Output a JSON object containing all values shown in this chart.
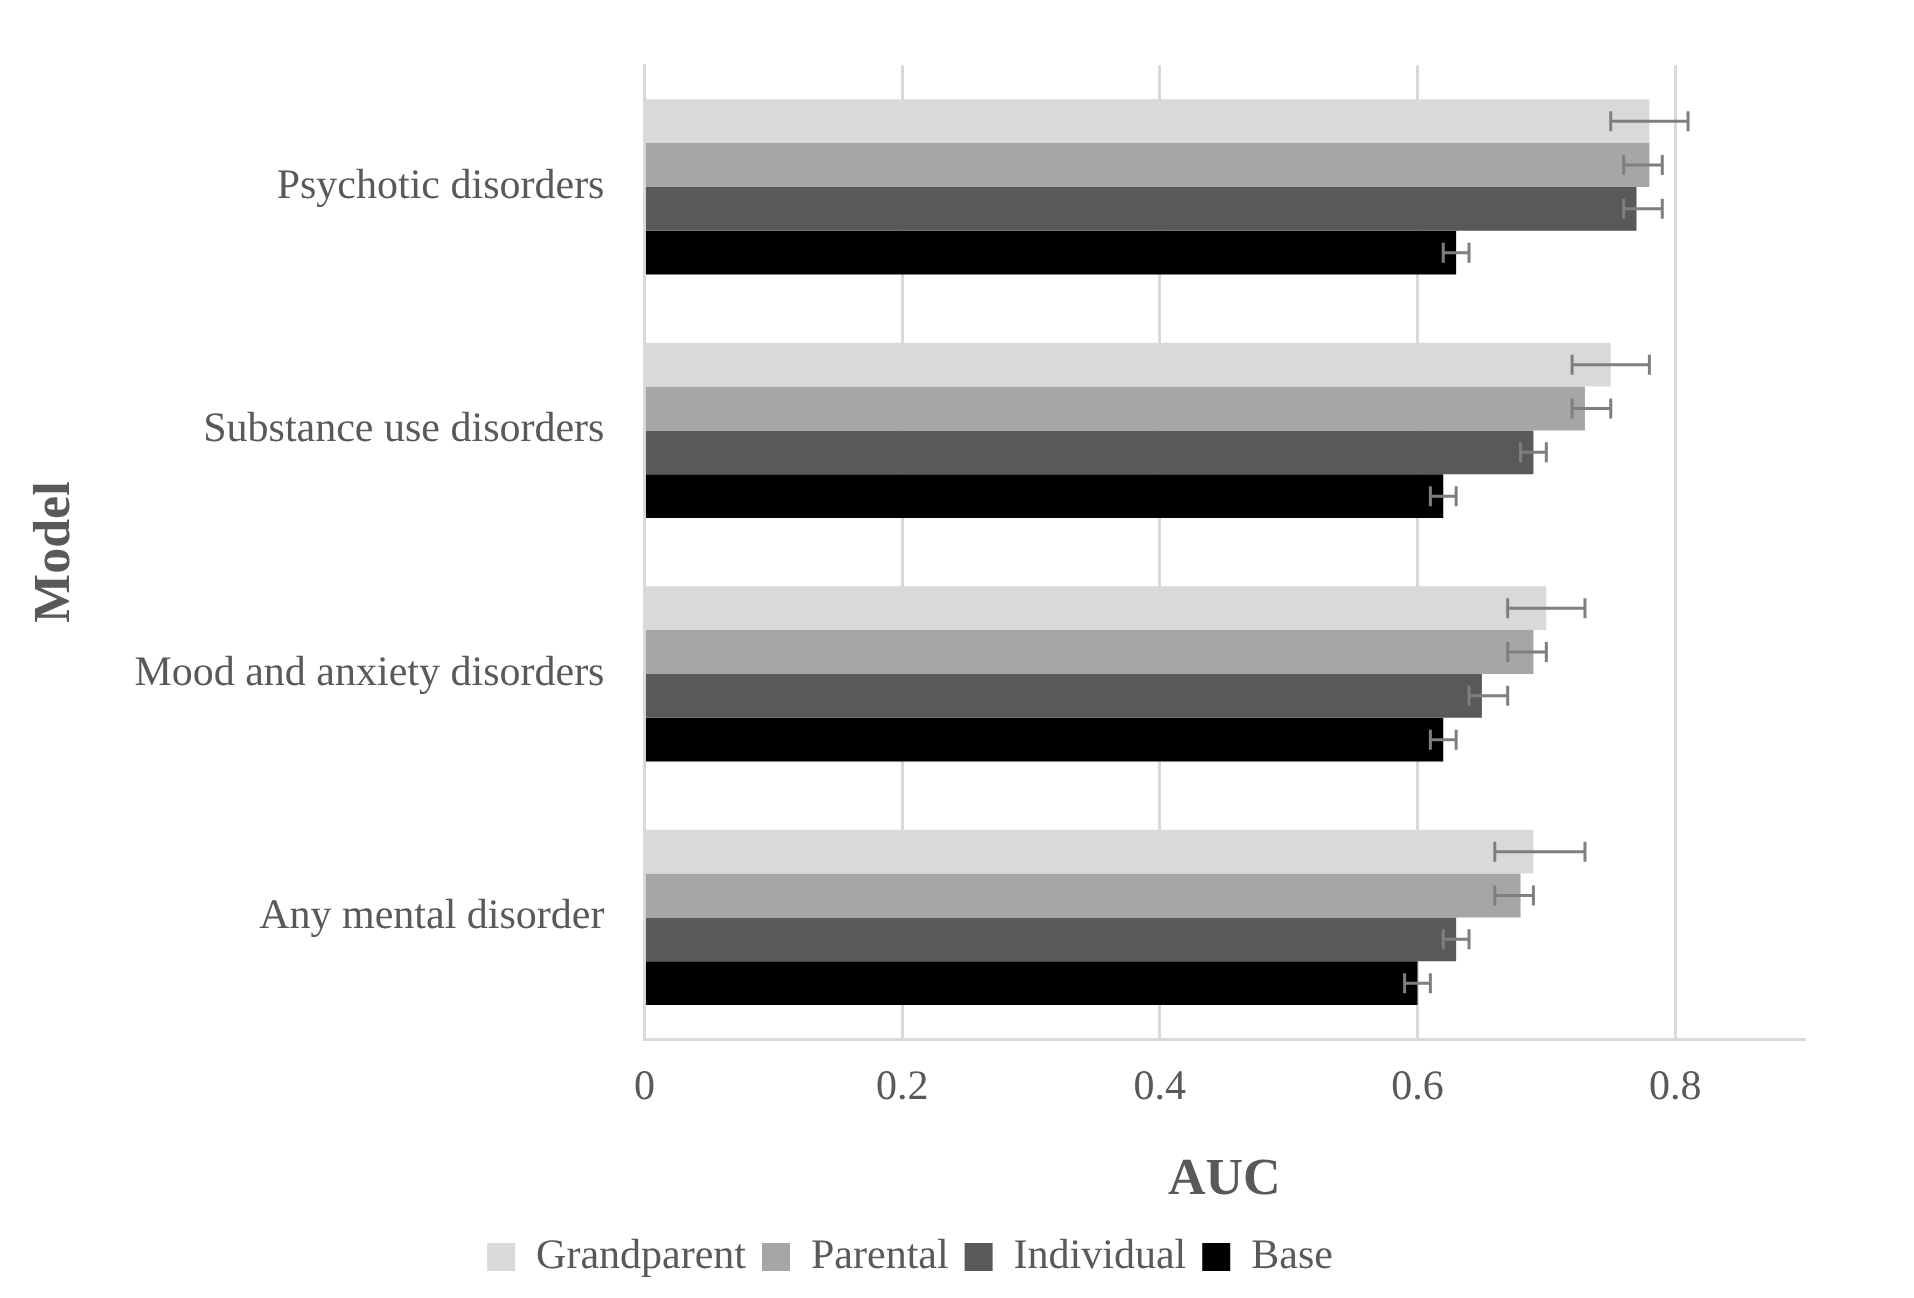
{
  "chart_data": {
    "type": "bar",
    "orientation": "horizontal",
    "xlabel": "AUC",
    "ylabel": "Model",
    "categories": [
      "Psychotic disorders",
      "Substance use disorders",
      "Mood and anxiety disorders",
      "Any mental disorder"
    ],
    "series": [
      {
        "name": "Grandparent",
        "color": "#d9d9d9",
        "values": [
          0.78,
          0.75,
          0.7,
          0.69
        ],
        "errors": [
          [
            0.75,
            0.81
          ],
          [
            0.72,
            0.78
          ],
          [
            0.67,
            0.73
          ],
          [
            0.66,
            0.73
          ]
        ]
      },
      {
        "name": "Parental",
        "color": "#a6a6a6",
        "values": [
          0.78,
          0.73,
          0.69,
          0.68
        ],
        "errors": [
          [
            0.76,
            0.79
          ],
          [
            0.72,
            0.75
          ],
          [
            0.67,
            0.7
          ],
          [
            0.66,
            0.69
          ]
        ]
      },
      {
        "name": "Individual",
        "color": "#595959",
        "values": [
          0.77,
          0.69,
          0.65,
          0.63
        ],
        "errors": [
          [
            0.76,
            0.79
          ],
          [
            0.68,
            0.7
          ],
          [
            0.64,
            0.67
          ],
          [
            0.62,
            0.64
          ]
        ]
      },
      {
        "name": "Base",
        "color": "#000000",
        "values": [
          0.63,
          0.62,
          0.62,
          0.6
        ],
        "errors": [
          [
            0.62,
            0.64
          ],
          [
            0.61,
            0.63
          ],
          [
            0.61,
            0.63
          ],
          [
            0.59,
            0.61
          ]
        ]
      }
    ],
    "xlim": [
      0,
      0.9
    ],
    "xticks": [
      0,
      0.2,
      0.4,
      0.6,
      0.8
    ],
    "grid": "x",
    "legend": "bottom"
  }
}
